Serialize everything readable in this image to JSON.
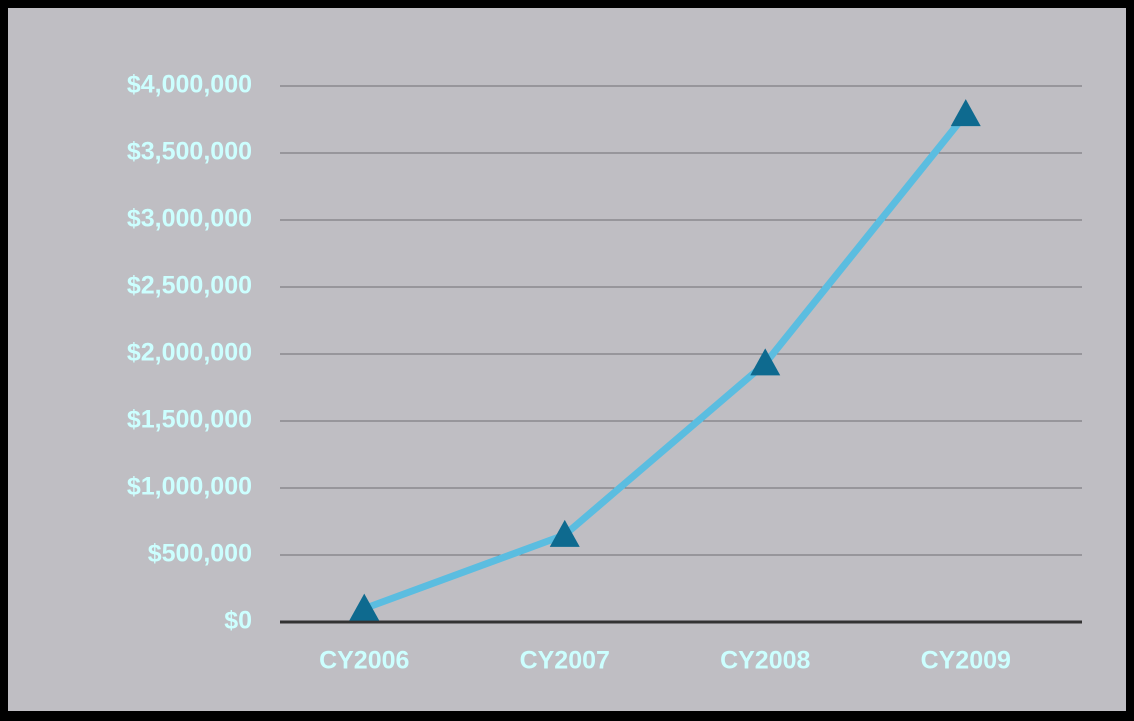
{
  "chart_data": {
    "type": "line",
    "categories": [
      "CY2006",
      "CY2007",
      "CY2008",
      "CY2009"
    ],
    "series": [
      {
        "color": "#5bbde0",
        "marker_color": "#0e6a8f",
        "values": [
          100000,
          650000,
          1930000,
          3790000
        ]
      }
    ],
    "ylim": [
      0,
      4000000
    ],
    "yticks": [
      {
        "value": 0,
        "label": "$0"
      },
      {
        "value": 500000,
        "label": "$500,000"
      },
      {
        "value": 1000000,
        "label": "$1,000,000"
      },
      {
        "value": 1500000,
        "label": "$1,500,000"
      },
      {
        "value": 2000000,
        "label": "$2,000,000"
      },
      {
        "value": 2500000,
        "label": "$2,500,000"
      },
      {
        "value": 3000000,
        "label": "$3,000,000"
      },
      {
        "value": 3500000,
        "label": "$3,500,000"
      },
      {
        "value": 4000000,
        "label": "$4,000,000"
      }
    ],
    "grid": true
  }
}
